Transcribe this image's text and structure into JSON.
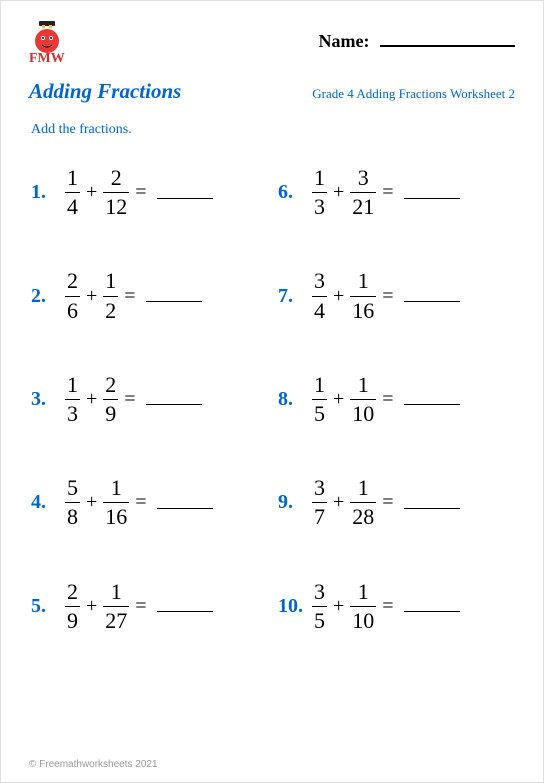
{
  "logo": {
    "text": "FMW"
  },
  "name_label": "Name:",
  "title": "Adding Fractions",
  "subtitle": "Grade 4 Adding Fractions Worksheet 2",
  "instruction": "Add the fractions.",
  "problems": [
    {
      "n": "1.",
      "a_num": "1",
      "a_den": "4",
      "b_num": "2",
      "b_den": "12"
    },
    {
      "n": "2.",
      "a_num": "2",
      "a_den": "6",
      "b_num": "1",
      "b_den": "2"
    },
    {
      "n": "3.",
      "a_num": "1",
      "a_den": "3",
      "b_num": "2",
      "b_den": "9"
    },
    {
      "n": "4.",
      "a_num": "5",
      "a_den": "8",
      "b_num": "1",
      "b_den": "16"
    },
    {
      "n": "5.",
      "a_num": "2",
      "a_den": "9",
      "b_num": "1",
      "b_den": "27"
    },
    {
      "n": "6.",
      "a_num": "1",
      "a_den": "3",
      "b_num": "3",
      "b_den": "21"
    },
    {
      "n": "7.",
      "a_num": "3",
      "a_den": "4",
      "b_num": "1",
      "b_den": "16"
    },
    {
      "n": "8.",
      "a_num": "1",
      "a_den": "5",
      "b_num": "1",
      "b_den": "10"
    },
    {
      "n": "9.",
      "a_num": "3",
      "a_den": "7",
      "b_num": "1",
      "b_den": "28"
    },
    {
      "n": "10.",
      "a_num": "3",
      "a_den": "5",
      "b_num": "1",
      "b_den": "10"
    }
  ],
  "footer": "© Freemathworksheets 2021",
  "colors": {
    "accent": "#0066cc",
    "logo_red": "#d32f2f",
    "text": "#000000",
    "footer": "#999999"
  }
}
